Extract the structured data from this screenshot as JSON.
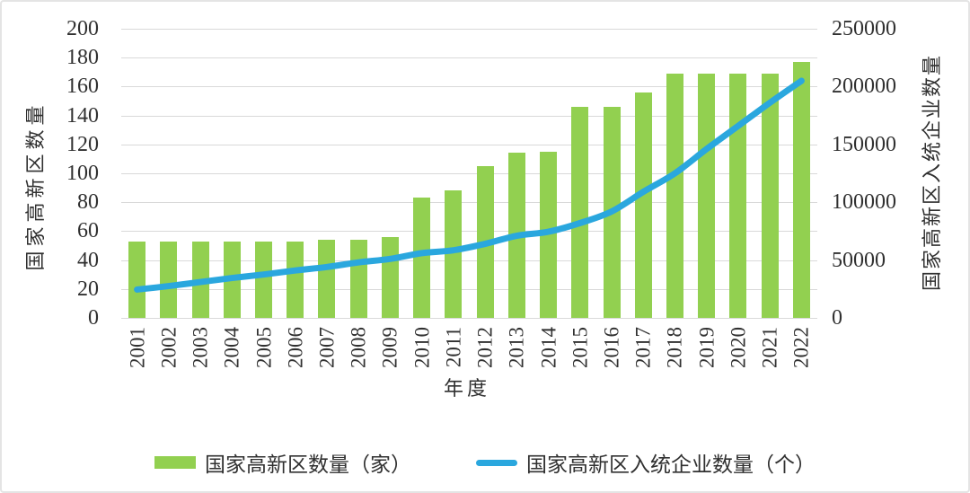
{
  "chart_data": {
    "type": "bar+line",
    "title": "",
    "categories": [
      "2001",
      "2002",
      "2003",
      "2004",
      "2005",
      "2006",
      "2007",
      "2008",
      "2009",
      "2010",
      "2011",
      "2012",
      "2013",
      "2014",
      "2015",
      "2016",
      "2017",
      "2018",
      "2019",
      "2020",
      "2021",
      "2022"
    ],
    "xlabel": "年度",
    "grid": true,
    "legend_position": "bottom",
    "left_axis": {
      "title": "国家高新区数量",
      "min": 0,
      "max": 200,
      "step": 20
    },
    "right_axis": {
      "title": "国家高新区入统企业数量",
      "min": 0,
      "max": 250000,
      "step": 50000
    },
    "series": [
      {
        "name": "国家高新区数量（家）",
        "type": "bar",
        "axis": "left",
        "color": "#92D050",
        "values": [
          53,
          53,
          53,
          53,
          53,
          53,
          54,
          54,
          56,
          83,
          88,
          105,
          114,
          115,
          146,
          146,
          156,
          169,
          169,
          169,
          169,
          177
        ]
      },
      {
        "name": "国家高新区入统企业数量（个）",
        "type": "line",
        "axis": "right",
        "color": "#2AA7DE",
        "values": [
          24500,
          27500,
          31000,
          34500,
          37500,
          41000,
          44000,
          48000,
          51000,
          56000,
          58500,
          64000,
          71000,
          74500,
          82000,
          92000,
          109000,
          125000,
          146000,
          166000,
          186000,
          205000
        ]
      }
    ]
  },
  "colors": {
    "bar": "#92D050",
    "line": "#2AA7DE",
    "grid": "#d9d9d9",
    "text": "#303030",
    "border": "#e4e4e4"
  }
}
